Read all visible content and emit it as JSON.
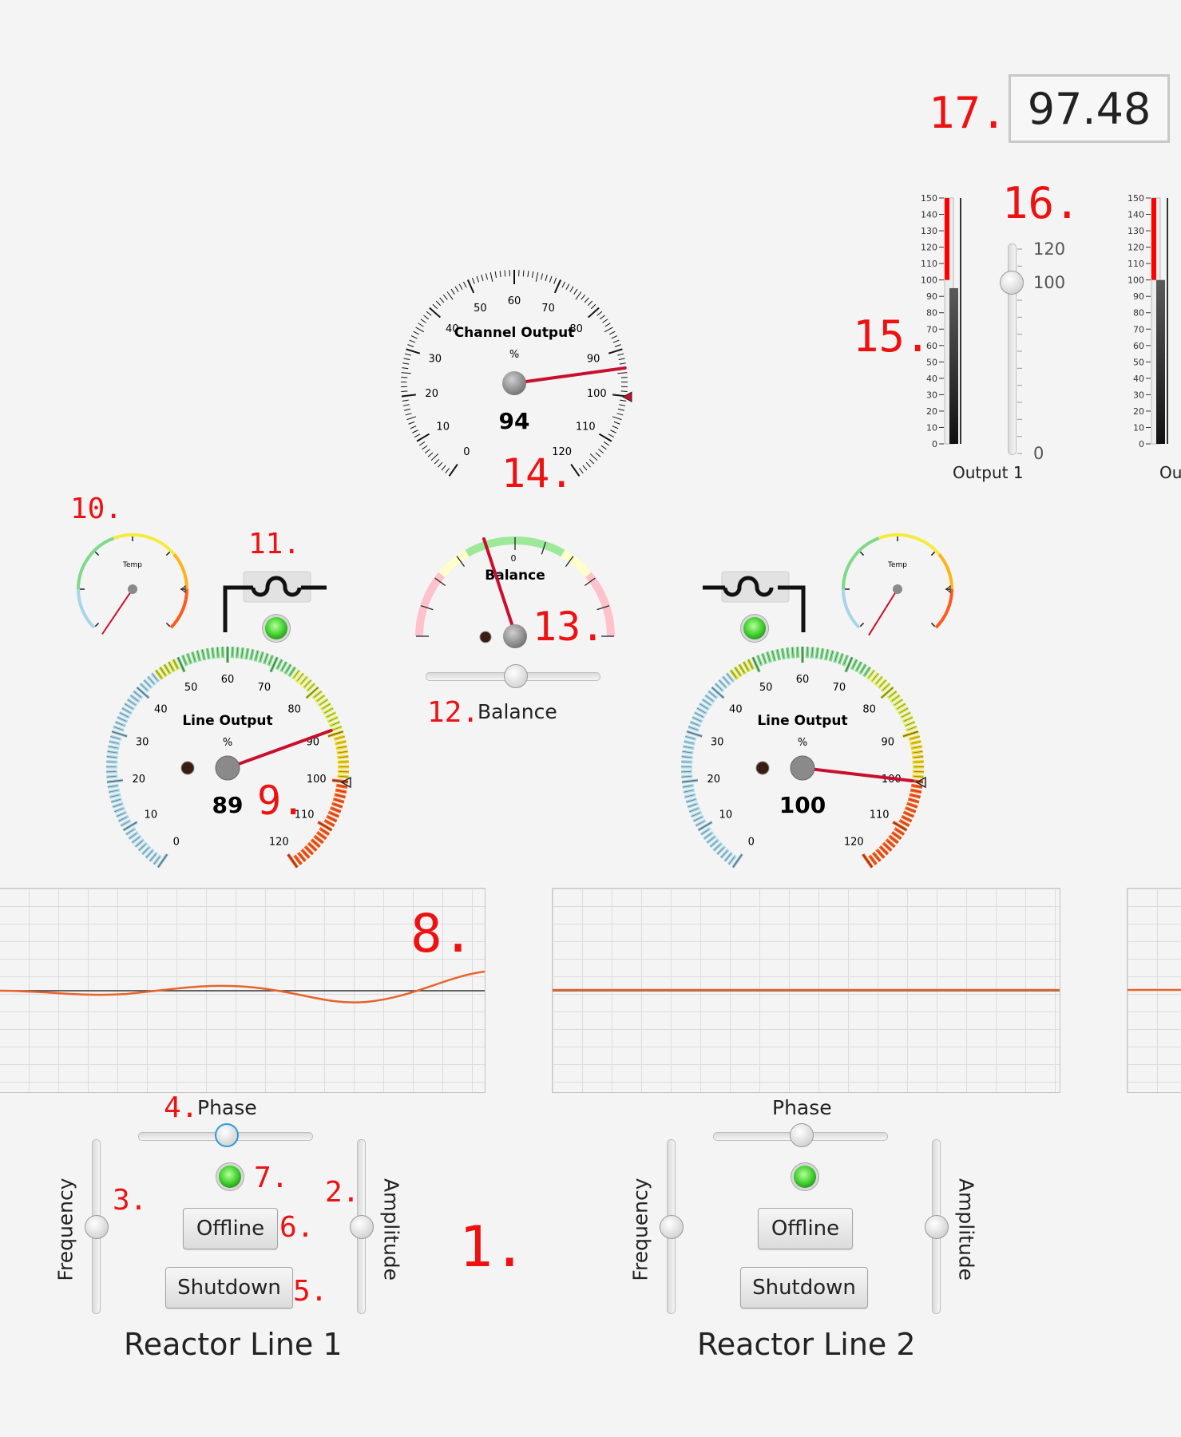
{
  "readout": {
    "value": "97.48"
  },
  "annotations": {
    "n1": "1.",
    "n2": "2.",
    "n3": "3.",
    "n4": "4.",
    "n5": "5.",
    "n6": "6.",
    "n7": "7.",
    "n8": "8.",
    "n9": "9.",
    "n10": "10.",
    "n11": "11.",
    "n12": "12.",
    "n13": "13.",
    "n14": "14.",
    "n15": "15.",
    "n16": "16.",
    "n17": "17."
  },
  "channel_gauge": {
    "title": "Channel Output",
    "unit": "%",
    "value": "94",
    "ticks": [
      "0",
      "10",
      "20",
      "30",
      "40",
      "50",
      "60",
      "70",
      "80",
      "90",
      "100",
      "110",
      "120"
    ]
  },
  "line_gauge_1": {
    "title": "Line Output",
    "unit": "%",
    "value": "89",
    "ticks": [
      "0",
      "10",
      "20",
      "30",
      "40",
      "50",
      "60",
      "70",
      "80",
      "90",
      "100",
      "110",
      "120"
    ]
  },
  "line_gauge_2": {
    "title": "Line Output",
    "unit": "%",
    "value": "100",
    "ticks": [
      "0",
      "10",
      "20",
      "30",
      "40",
      "50",
      "60",
      "70",
      "80",
      "90",
      "100",
      "110",
      "120"
    ]
  },
  "temp_gauge_1": {
    "title": "Temp"
  },
  "temp_gauge_2": {
    "title": "Temp"
  },
  "balance": {
    "title": "Balance",
    "zero": "0",
    "label": "Balance"
  },
  "bar_meter_1": {
    "label": "Output 1",
    "ticks": [
      "150",
      "140",
      "130",
      "120",
      "110",
      "100",
      "90",
      "80",
      "70",
      "60",
      "50",
      "40",
      "30",
      "20",
      "10",
      "0"
    ],
    "level": 95
  },
  "bar_meter_2": {
    "label": "Ou",
    "ticks": [
      "150",
      "140",
      "130",
      "120",
      "110",
      "100",
      "90",
      "80",
      "70",
      "60",
      "50",
      "40",
      "30",
      "20",
      "10",
      "0"
    ],
    "level": 100
  },
  "threshold_slider": {
    "ticks": [
      "120",
      "100",
      "0"
    ],
    "value": 100
  },
  "reactor_1": {
    "name": "Reactor Line 1",
    "phase": "Phase",
    "frequency": "Frequency",
    "amplitude": "Amplitude",
    "offline": "Offline",
    "shutdown": "Shutdown"
  },
  "reactor_2": {
    "name": "Reactor Line 2",
    "phase": "Phase",
    "frequency": "Frequency",
    "amplitude": "Amplitude",
    "offline": "Offline",
    "shutdown": "Shutdown"
  },
  "colors": {
    "annotation": "#ee1111",
    "needle": "#c8102e",
    "trace": "#e8632a",
    "led": "#3fcf2e"
  }
}
